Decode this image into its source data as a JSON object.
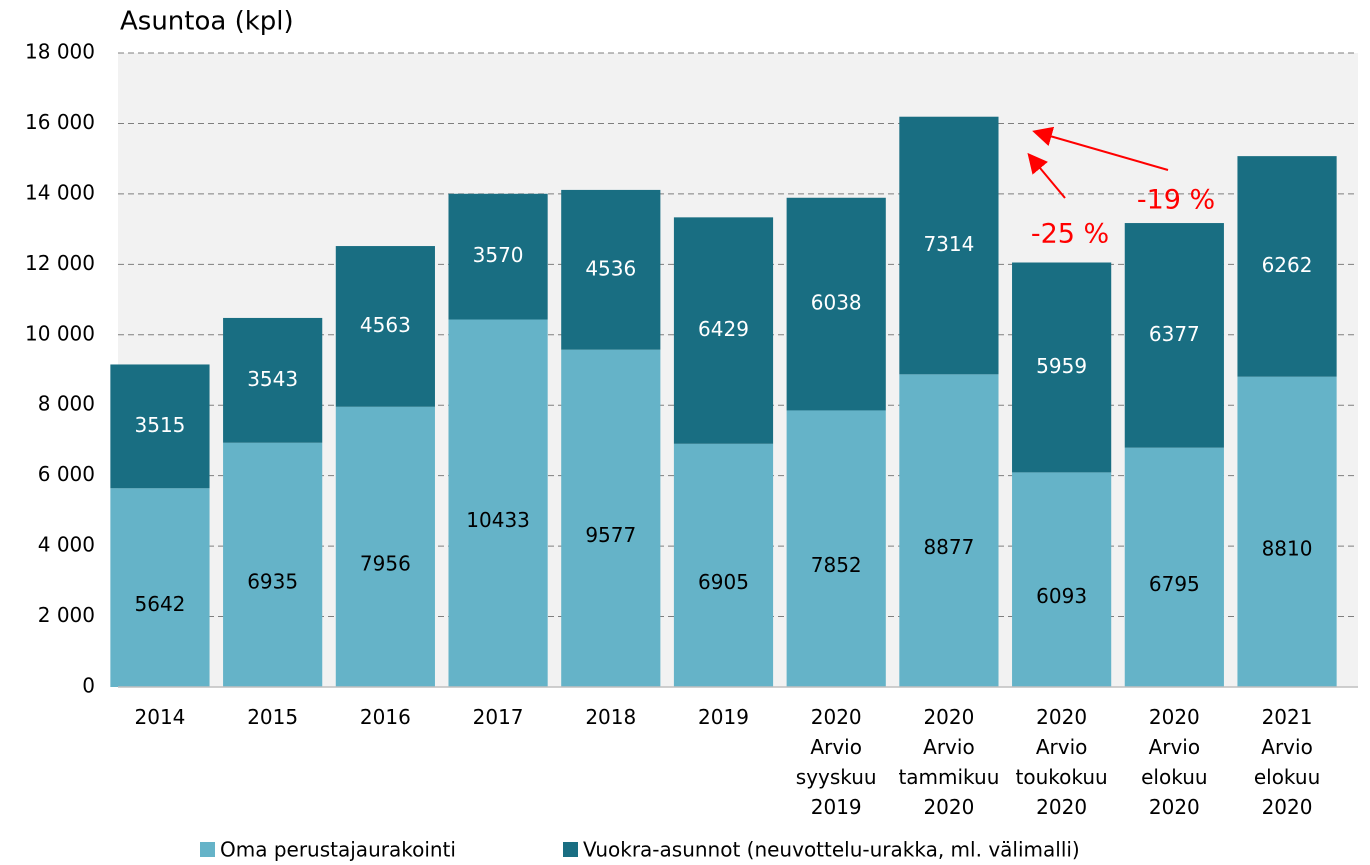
{
  "chart_data": {
    "type": "stacked-bar",
    "y_label": "Asuntoa (kpl)",
    "categories": [
      "2014",
      "2015",
      "2016",
      "2017",
      "2018",
      "2019",
      "2020\nArvio\nsyyskuu\n2019",
      "2020\nArvio\ntammikuu\n2020",
      "2020\nArvio\ntoukokuu\n2020",
      "2020\nArvio\nelokuu\n2020",
      "2021\nArvio\nelokuu\n2020"
    ],
    "series": [
      {
        "name": "Oma perustajaurakointi",
        "color": "#65b3c8",
        "values": [
          5642,
          6935,
          7956,
          10433,
          9577,
          6905,
          7852,
          8877,
          6093,
          6795,
          8810
        ]
      },
      {
        "name": "Vuokra-asunnot (neuvottelu-urakka, ml. välimalli)",
        "color": "#196e82",
        "values": [
          3515,
          3543,
          4563,
          3570,
          4536,
          6429,
          6038,
          7314,
          5959,
          6377,
          6262
        ]
      }
    ],
    "ylim": [
      0,
      18000
    ],
    "yticks": [
      0,
      {
        "value": 2000,
        "label": "2 000"
      },
      {
        "value": 4000,
        "label": "4 000"
      },
      {
        "value": 6000,
        "label": "6 000"
      },
      {
        "value": 8000,
        "label": "8 000"
      },
      {
        "value": 10000,
        "label": "10 000"
      },
      {
        "value": 12000,
        "label": "12 000"
      },
      {
        "value": 14000,
        "label": "14 000"
      },
      {
        "value": 16000,
        "label": "16 000"
      },
      {
        "value": 18000,
        "label": "18 000"
      }
    ],
    "grid": true,
    "annotations": [
      {
        "text": "-25 %"
      },
      {
        "text": "-19 %"
      }
    ],
    "legend": "bottom"
  }
}
